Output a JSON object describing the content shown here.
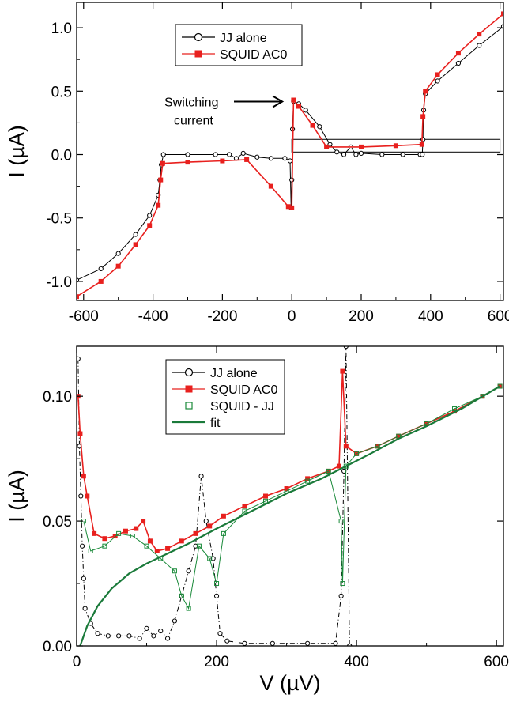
{
  "chart_data": [
    {
      "type": "scatter",
      "xlabel": "",
      "ylabel": "I (µA)",
      "xlim": [
        -620,
        610
      ],
      "ylim": [
        -1.15,
        1.2
      ],
      "x_ticks": [
        -600,
        -400,
        -200,
        0,
        200,
        400,
        600
      ],
      "x_tick_labels": [
        "-600",
        "-400",
        "-200",
        "0",
        "200",
        "400",
        "600"
      ],
      "y_ticks": [
        -1.0,
        -0.5,
        0.0,
        0.5,
        1.0
      ],
      "y_tick_labels": [
        "-1.0",
        "-0.5",
        "0.0",
        "0.5",
        "1.0"
      ],
      "legend": {
        "placement": "top-center",
        "entries": [
          "JJ alone",
          "SQUID AC0"
        ]
      },
      "annotation": {
        "lines": [
          "Switching",
          "current"
        ],
        "x": 0,
        "y": 0.43
      },
      "inset_box": {
        "x": [
          0,
          600
        ],
        "y": [
          0.02,
          0.12
        ]
      },
      "series": [
        {
          "name": "JJ alone",
          "color": "#000000",
          "marker": "open-circle",
          "points": [
            [
              -620,
              -0.99
            ],
            [
              -550,
              -0.9
            ],
            [
              -500,
              -0.78
            ],
            [
              -450,
              -0.63
            ],
            [
              -410,
              -0.48
            ],
            [
              -385,
              -0.32
            ],
            [
              -380,
              -0.2
            ],
            [
              -376,
              -0.08
            ],
            [
              -370,
              0.0
            ],
            [
              -300,
              0.0
            ],
            [
              -220,
              0.0
            ],
            [
              -180,
              0.0
            ],
            [
              -160,
              -0.03
            ],
            [
              -140,
              0.01
            ],
            [
              -100,
              -0.02
            ],
            [
              -60,
              -0.03
            ],
            [
              -20,
              -0.03
            ],
            [
              -5,
              -0.05
            ],
            [
              -2,
              -0.42
            ],
            [
              0,
              -0.2
            ],
            [
              2,
              0.2
            ],
            [
              5,
              0.42
            ],
            [
              20,
              0.4
            ],
            [
              40,
              0.35
            ],
            [
              80,
              0.22
            ],
            [
              110,
              0.08
            ],
            [
              130,
              0.02
            ],
            [
              150,
              0.0
            ],
            [
              170,
              0.06
            ],
            [
              185,
              0.0
            ],
            [
              200,
              0.01
            ],
            [
              260,
              0.0
            ],
            [
              320,
              0.0
            ],
            [
              370,
              0.0
            ],
            [
              376,
              0.0
            ],
            [
              378,
              0.12
            ],
            [
              380,
              0.35
            ],
            [
              385,
              0.48
            ],
            [
              420,
              0.58
            ],
            [
              480,
              0.72
            ],
            [
              540,
              0.86
            ],
            [
              610,
              1.01
            ]
          ]
        },
        {
          "name": "SQUID AC0",
          "color": "#e8201e",
          "marker": "filled-square",
          "points": [
            [
              -620,
              -1.12
            ],
            [
              -550,
              -1.0
            ],
            [
              -500,
              -0.88
            ],
            [
              -450,
              -0.71
            ],
            [
              -410,
              -0.56
            ],
            [
              -385,
              -0.4
            ],
            [
              -378,
              -0.2
            ],
            [
              -372,
              -0.07
            ],
            [
              -300,
              -0.06
            ],
            [
              -200,
              -0.05
            ],
            [
              -130,
              -0.04
            ],
            [
              -60,
              -0.25
            ],
            [
              -10,
              -0.41
            ],
            [
              0,
              -0.42
            ],
            [
              5,
              0.43
            ],
            [
              20,
              0.38
            ],
            [
              60,
              0.23
            ],
            [
              100,
              0.06
            ],
            [
              200,
              0.06
            ],
            [
              300,
              0.07
            ],
            [
              375,
              0.08
            ],
            [
              378,
              0.3
            ],
            [
              385,
              0.5
            ],
            [
              420,
              0.63
            ],
            [
              480,
              0.8
            ],
            [
              540,
              0.95
            ],
            [
              610,
              1.11
            ]
          ]
        }
      ]
    },
    {
      "type": "scatter",
      "xlabel": "V (µV)",
      "ylabel": "I (µA)",
      "xlim": [
        0,
        610
      ],
      "ylim": [
        0,
        0.12
      ],
      "x_ticks": [
        0,
        200,
        400,
        600
      ],
      "x_tick_labels": [
        "0",
        "200",
        "400",
        "600"
      ],
      "y_ticks": [
        0.0,
        0.05,
        0.1
      ],
      "y_tick_labels": [
        "0.00",
        "0.05",
        "0.10"
      ],
      "legend": {
        "placement": "top-center",
        "entries": [
          "JJ alone",
          "SQUID AC0",
          "SQUID - JJ",
          "fit"
        ]
      },
      "series": [
        {
          "name": "JJ alone",
          "color": "#000000",
          "marker": "open-circle",
          "points": [
            [
              2,
              0.115
            ],
            [
              4,
              0.08
            ],
            [
              6,
              0.06
            ],
            [
              8,
              0.04
            ],
            [
              10,
              0.027
            ],
            [
              12,
              0.015
            ],
            [
              20,
              0.009
            ],
            [
              30,
              0.005
            ],
            [
              45,
              0.004
            ],
            [
              60,
              0.004
            ],
            [
              75,
              0.004
            ],
            [
              90,
              0.003
            ],
            [
              100,
              0.007
            ],
            [
              110,
              0.004
            ],
            [
              120,
              0.006
            ],
            [
              130,
              0.003
            ],
            [
              140,
              0.01
            ],
            [
              150,
              0.02
            ],
            [
              160,
              0.03
            ],
            [
              170,
              0.04
            ],
            [
              178,
              0.068
            ],
            [
              185,
              0.05
            ],
            [
              195,
              0.035
            ],
            [
              200,
              0.02
            ],
            [
              205,
              0.005
            ],
            [
              215,
              0.002
            ],
            [
              240,
              0.001
            ],
            [
              280,
              0.001
            ],
            [
              330,
              0.001
            ],
            [
              370,
              0.001
            ],
            [
              378,
              0.02
            ],
            [
              382,
              0.07
            ],
            [
              385,
              0.12
            ],
            [
              390,
              0.0
            ]
          ]
        },
        {
          "name": "SQUID AC0",
          "color": "#e8201e",
          "marker": "filled-square",
          "points": [
            [
              2,
              0.1
            ],
            [
              5,
              0.085
            ],
            [
              10,
              0.068
            ],
            [
              15,
              0.06
            ],
            [
              25,
              0.045
            ],
            [
              40,
              0.043
            ],
            [
              55,
              0.044
            ],
            [
              70,
              0.046
            ],
            [
              85,
              0.047
            ],
            [
              95,
              0.05
            ],
            [
              105,
              0.042
            ],
            [
              115,
              0.038
            ],
            [
              130,
              0.039
            ],
            [
              150,
              0.042
            ],
            [
              170,
              0.045
            ],
            [
              190,
              0.048
            ],
            [
              210,
              0.052
            ],
            [
              240,
              0.056
            ],
            [
              270,
              0.06
            ],
            [
              300,
              0.063
            ],
            [
              330,
              0.067
            ],
            [
              360,
              0.07
            ],
            [
              375,
              0.072
            ],
            [
              380,
              0.11
            ],
            [
              385,
              0.08
            ],
            [
              400,
              0.077
            ],
            [
              430,
              0.08
            ],
            [
              460,
              0.084
            ],
            [
              500,
              0.089
            ],
            [
              540,
              0.094
            ],
            [
              580,
              0.1
            ],
            [
              605,
              0.104
            ]
          ]
        },
        {
          "name": "SQUID - JJ",
          "color": "#1a8a3a",
          "marker": "open-square",
          "points": [
            [
              10,
              0.05
            ],
            [
              20,
              0.038
            ],
            [
              40,
              0.04
            ],
            [
              60,
              0.045
            ],
            [
              80,
              0.044
            ],
            [
              100,
              0.04
            ],
            [
              120,
              0.035
            ],
            [
              140,
              0.03
            ],
            [
              150,
              0.02
            ],
            [
              160,
              0.015
            ],
            [
              175,
              0.04
            ],
            [
              190,
              0.035
            ],
            [
              200,
              0.025
            ],
            [
              210,
              0.045
            ],
            [
              240,
              0.054
            ],
            [
              270,
              0.058
            ],
            [
              300,
              0.062
            ],
            [
              330,
              0.066
            ],
            [
              360,
              0.07
            ],
            [
              378,
              0.05
            ],
            [
              380,
              0.025
            ],
            [
              385,
              0.072
            ],
            [
              400,
              0.077
            ],
            [
              430,
              0.08
            ],
            [
              460,
              0.084
            ],
            [
              500,
              0.089
            ],
            [
              540,
              0.095
            ],
            [
              580,
              0.1
            ],
            [
              605,
              0.104
            ]
          ]
        },
        {
          "name": "fit",
          "color": "#1a7a3a",
          "marker": "line",
          "points": [
            [
              5,
              0.0
            ],
            [
              15,
              0.008
            ],
            [
              30,
              0.016
            ],
            [
              50,
              0.023
            ],
            [
              75,
              0.029
            ],
            [
              100,
              0.033
            ],
            [
              130,
              0.037
            ],
            [
              160,
              0.041
            ],
            [
              200,
              0.047
            ],
            [
              250,
              0.054
            ],
            [
              300,
              0.061
            ],
            [
              350,
              0.067
            ],
            [
              385,
              0.072
            ],
            [
              420,
              0.077
            ],
            [
              460,
              0.083
            ],
            [
              500,
              0.088
            ],
            [
              550,
              0.095
            ],
            [
              605,
              0.104
            ]
          ]
        }
      ]
    }
  ]
}
